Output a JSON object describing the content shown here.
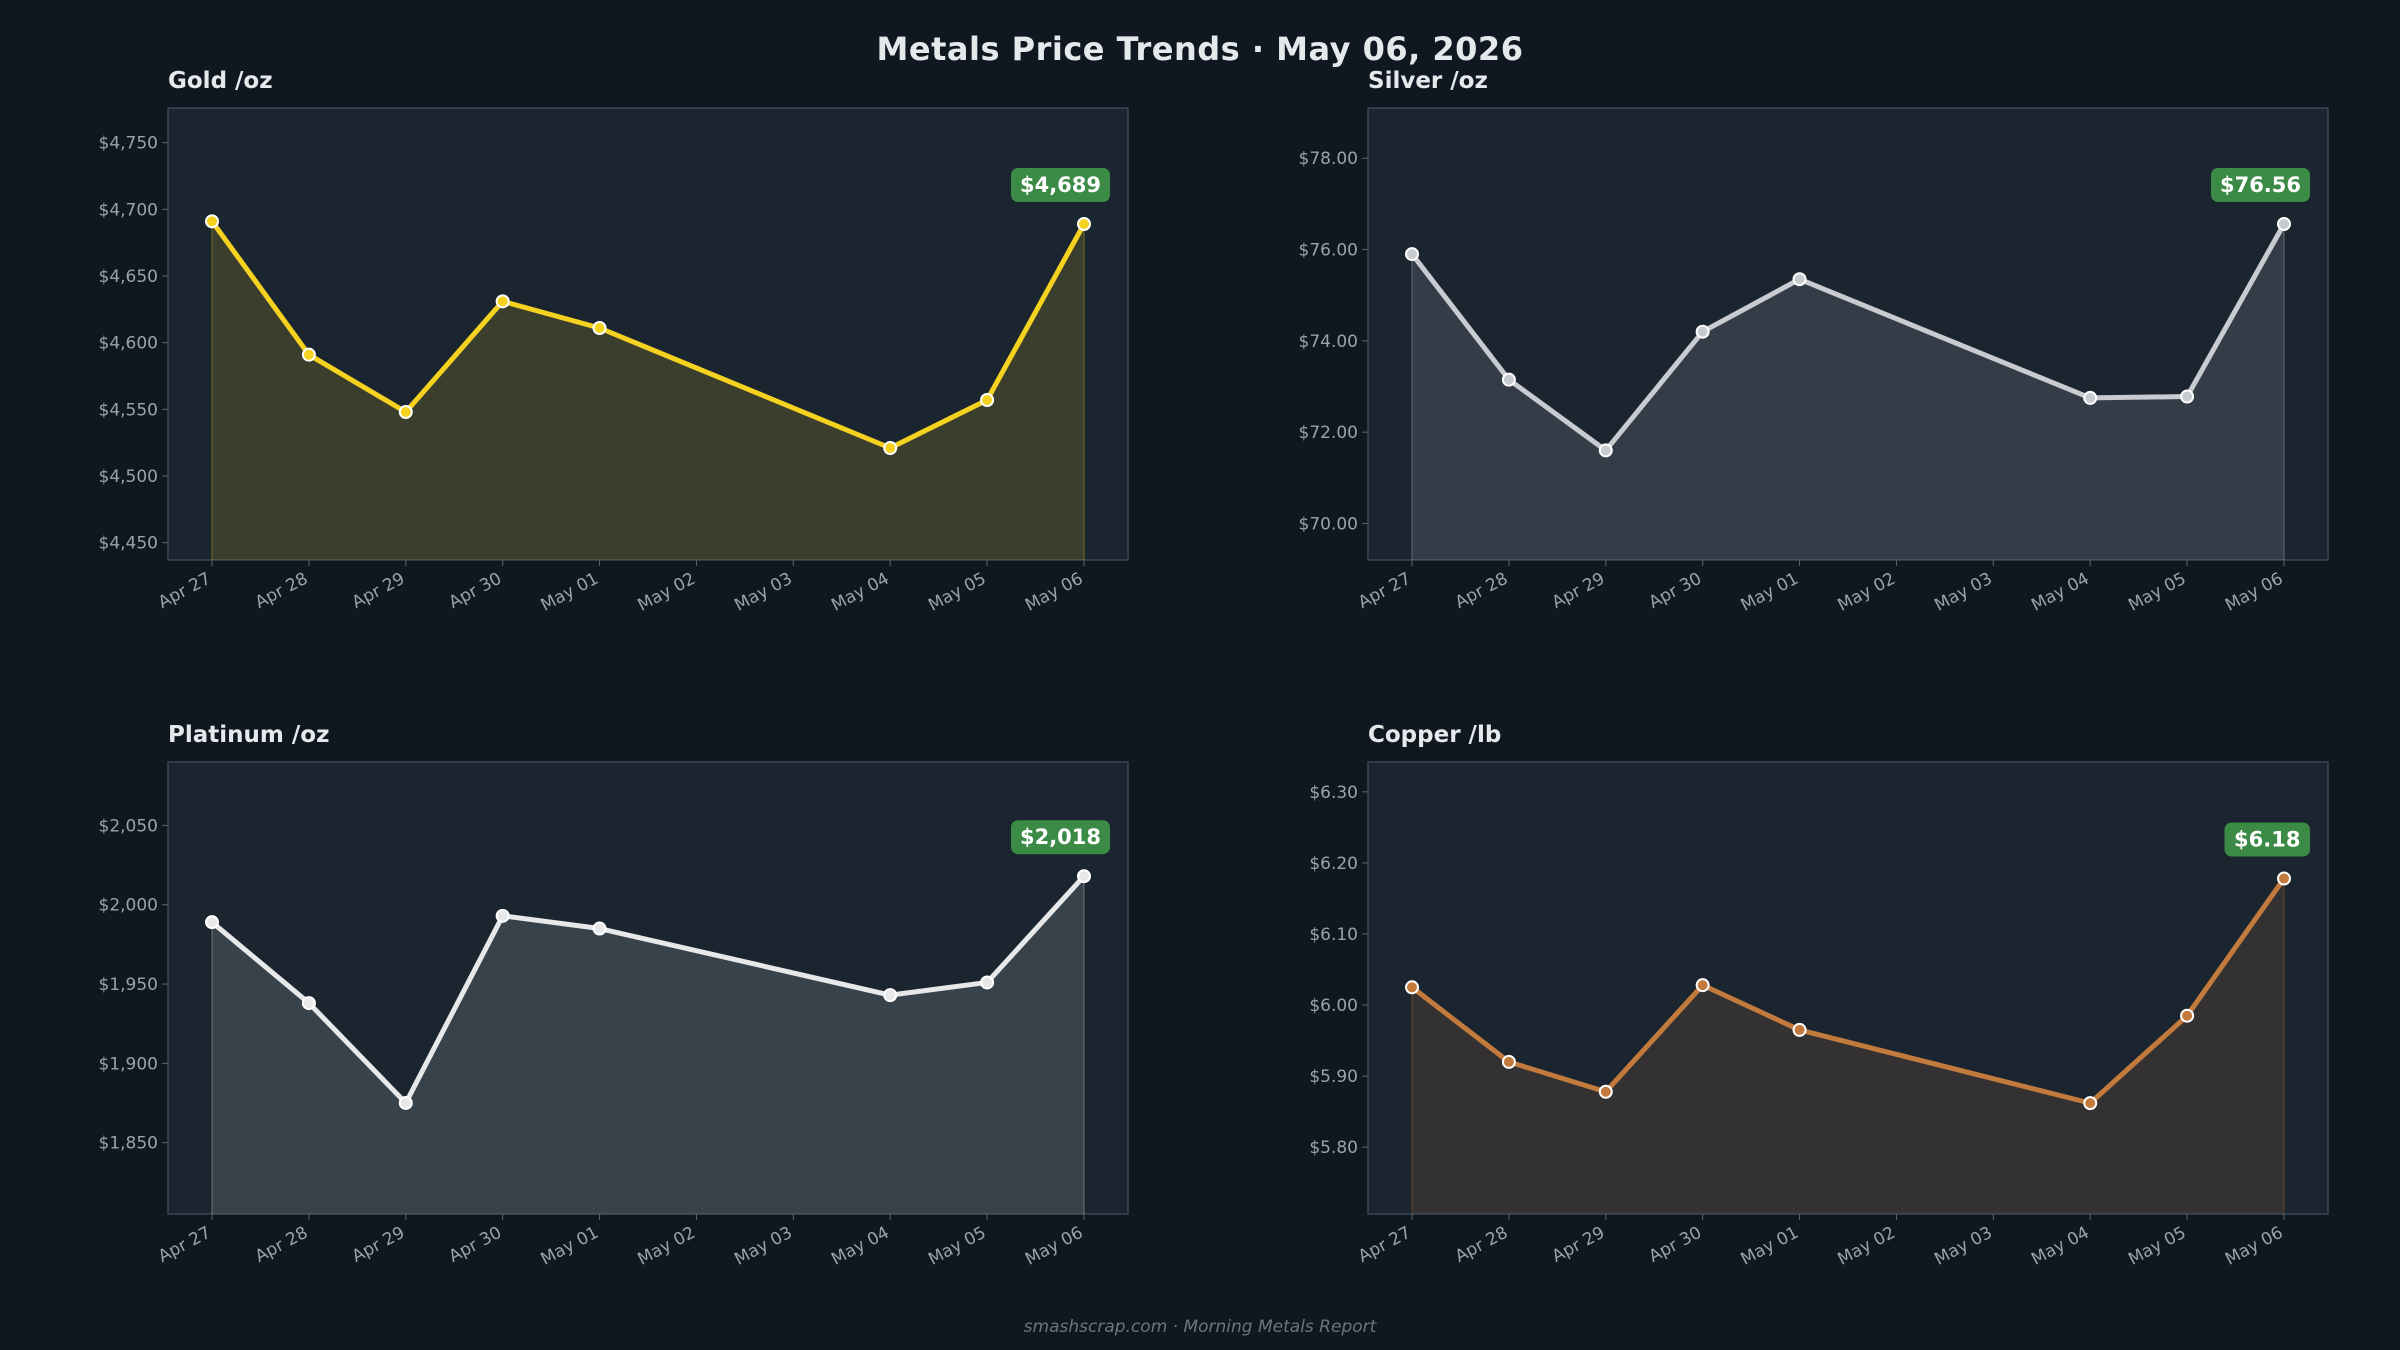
{
  "title": "Metals Price Trends  ·  May 06, 2026",
  "footer": "smashscrap.com  ·  Morning Metals Report",
  "colors": {
    "background": "#0f1820",
    "panel": "#1b252f",
    "badge": "#3b8a45",
    "gold": "#f5d21f",
    "silver": "#c8cbcf",
    "platinum": "#e6e8ea",
    "copper": "#c27a3d"
  },
  "chart_data": [
    {
      "type": "area",
      "title": "Gold  /oz",
      "categories": [
        "Apr 27",
        "Apr 28",
        "Apr 29",
        "Apr 30",
        "May 01",
        "May 02",
        "May 03",
        "May 04",
        "May 05",
        "May 06"
      ],
      "x": [
        "Apr 27",
        "Apr 28",
        "Apr 29",
        "Apr 30",
        "May 01",
        "May 04",
        "May 05",
        "May 06"
      ],
      "series": [
        {
          "values": [
            4691,
            4591,
            4548,
            4631,
            4611,
            4521,
            4557,
            4689
          ],
          "color": "#f5d21f"
        }
      ],
      "yticks": [
        "$4,450",
        "$4,500",
        "$4,550",
        "$4,600",
        "$4,650",
        "$4,700",
        "$4,750"
      ],
      "ytick_values": [
        4450,
        4500,
        4550,
        4600,
        4650,
        4700,
        4750
      ],
      "ylim": [
        4437,
        4776
      ],
      "latest_label": "$4,689",
      "grid": false
    },
    {
      "type": "area",
      "title": "Silver  /oz",
      "categories": [
        "Apr 27",
        "Apr 28",
        "Apr 29",
        "Apr 30",
        "May 01",
        "May 02",
        "May 03",
        "May 04",
        "May 05",
        "May 06"
      ],
      "x": [
        "Apr 27",
        "Apr 28",
        "Apr 29",
        "Apr 30",
        "May 01",
        "May 04",
        "May 05",
        "May 06"
      ],
      "series": [
        {
          "values": [
            75.9,
            73.15,
            71.6,
            74.2,
            75.35,
            72.75,
            72.78,
            76.56
          ],
          "color": "#c8cbcf"
        }
      ],
      "yticks": [
        "$70.00",
        "$72.00",
        "$74.00",
        "$76.00",
        "$78.00"
      ],
      "ytick_values": [
        70,
        72,
        74,
        76,
        78
      ],
      "ylim": [
        69.2,
        79.1
      ],
      "latest_label": "$76.56",
      "grid": false
    },
    {
      "type": "area",
      "title": "Platinum  /oz",
      "categories": [
        "Apr 27",
        "Apr 28",
        "Apr 29",
        "Apr 30",
        "May 01",
        "May 02",
        "May 03",
        "May 04",
        "May 05",
        "May 06"
      ],
      "x": [
        "Apr 27",
        "Apr 28",
        "Apr 29",
        "Apr 30",
        "May 01",
        "May 04",
        "May 05",
        "May 06"
      ],
      "series": [
        {
          "values": [
            1989,
            1938,
            1875,
            1993,
            1985,
            1943,
            1951,
            2018
          ],
          "color": "#e6e8ea"
        }
      ],
      "yticks": [
        "$1,850",
        "$1,900",
        "$1,950",
        "$2,000",
        "$2,050"
      ],
      "ytick_values": [
        1850,
        1900,
        1950,
        2000,
        2050
      ],
      "ylim": [
        1805,
        2090
      ],
      "latest_label": "$2,018",
      "grid": false
    },
    {
      "type": "area",
      "title": "Copper  /lb",
      "categories": [
        "Apr 27",
        "Apr 28",
        "Apr 29",
        "Apr 30",
        "May 01",
        "May 02",
        "May 03",
        "May 04",
        "May 05",
        "May 06"
      ],
      "x": [
        "Apr 27",
        "Apr 28",
        "Apr 29",
        "Apr 30",
        "May 01",
        "May 04",
        "May 05",
        "May 06"
      ],
      "series": [
        {
          "values": [
            6.025,
            5.92,
            5.878,
            6.028,
            5.965,
            5.862,
            5.985,
            6.178
          ],
          "color": "#c27a3d"
        }
      ],
      "yticks": [
        "$5.80",
        "$5.90",
        "$6.00",
        "$6.10",
        "$6.20",
        "$6.30"
      ],
      "ytick_values": [
        5.8,
        5.9,
        6.0,
        6.1,
        6.2,
        6.3
      ],
      "ylim": [
        5.706,
        6.342
      ],
      "latest_label": "$6.18",
      "grid": false
    }
  ]
}
